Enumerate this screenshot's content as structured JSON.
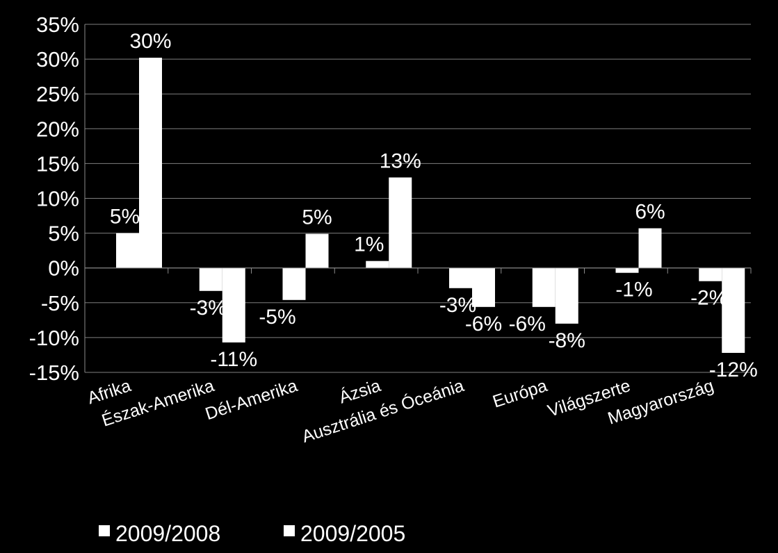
{
  "chart_data": {
    "type": "bar",
    "title": "",
    "xlabel": "",
    "ylabel": "",
    "categories": [
      "Afrika",
      "Észak-Amerika",
      "Dél-Amerika",
      "Ázsia",
      "Ausztrália és Óceánia",
      "Európa",
      "Világszerte",
      "Magyarország"
    ],
    "series": [
      {
        "name": "2009/2008",
        "values": [
          5,
          -3.3,
          -4.6,
          1,
          -2.9,
          -5.6,
          -0.7,
          -1.9
        ],
        "labels": [
          "5%",
          "-3%",
          "-5%",
          "1%",
          "-3%",
          "-6%",
          "-1%",
          "-2%"
        ]
      },
      {
        "name": "2009/2005",
        "values": [
          30.2,
          -10.7,
          4.9,
          13,
          -5.6,
          -8,
          5.7,
          -12.2
        ],
        "labels": [
          "30%",
          "-11%",
          "5%",
          "13%",
          "-6%",
          "-8%",
          "6%",
          "-12%"
        ]
      }
    ],
    "ylim": [
      -15,
      35
    ],
    "yticks": [
      35,
      30,
      25,
      20,
      15,
      10,
      5,
      0,
      -5,
      -10,
      -15
    ],
    "ytick_labels": [
      "35%",
      "30%",
      "25%",
      "20%",
      "15%",
      "10%",
      "5%",
      "0%",
      "-5%",
      "-10%",
      "-15%"
    ],
    "grid": true,
    "legend": "bottom-left",
    "colors": {
      "background": "#000000",
      "bars": "#ffffff",
      "text": "#ffffff",
      "gridlines": "#7f7f7f"
    }
  }
}
